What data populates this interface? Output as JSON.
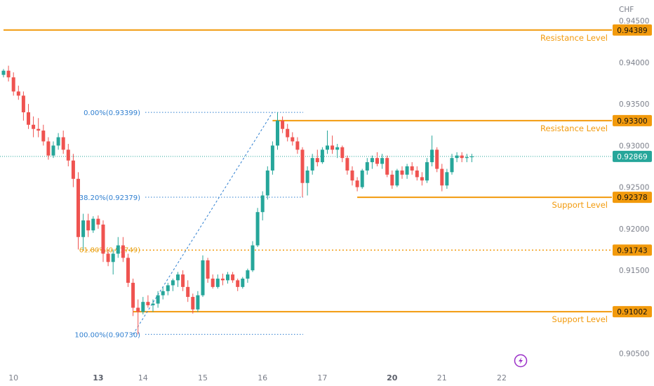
{
  "chart_data": {
    "type": "candlestick",
    "currency_label": "CHF",
    "y_ticks": [
      "0.94500",
      "0.94000",
      "0.93500",
      "0.93000",
      "0.92500",
      "0.92000",
      "0.91500",
      "0.90500"
    ],
    "y_tick_values": [
      0.945,
      0.94,
      0.935,
      0.93,
      0.925,
      0.92,
      0.915,
      0.905
    ],
    "ylim": [
      0.9032,
      0.9475
    ],
    "x_ticks": [
      {
        "label": "10",
        "index": 2,
        "bold": false
      },
      {
        "label": "13",
        "index": 19,
        "bold": true
      },
      {
        "label": "14",
        "index": 28,
        "bold": false
      },
      {
        "label": "15",
        "index": 40,
        "bold": false
      },
      {
        "label": "16",
        "index": 52,
        "bold": false
      },
      {
        "label": "17",
        "index": 64,
        "bold": false
      },
      {
        "label": "20",
        "index": 78,
        "bold": true
      },
      {
        "label": "21",
        "index": 88,
        "bold": false
      },
      {
        "label": "22",
        "index": 100,
        "bold": false
      }
    ],
    "levels": [
      {
        "name": "Resistance Level",
        "value": 0.94389,
        "value_label": "0.94389",
        "start_index": 0
      },
      {
        "name": "Resistance Level",
        "value": 0.933,
        "value_label": "0.93300",
        "start_index": 54
      },
      {
        "name": "Support Level",
        "value": 0.92378,
        "value_label": "0.92378",
        "start_index": 71
      },
      {
        "name": "Support Level",
        "value": 0.91002,
        "value_label": "0.91002",
        "start_index": 26
      }
    ],
    "fib_levels": [
      {
        "label": "0.00%(0.93399)",
        "value": 0.93399
      },
      {
        "label": "38.20%(0.92379)",
        "value": 0.92379
      },
      {
        "label": "61.80%(0.91749)",
        "value": 0.91749
      },
      {
        "label": "100.00%(0.90730)",
        "value": 0.9073
      }
    ],
    "fib_extended_level": {
      "value": 0.91743,
      "value_label": "0.91743"
    },
    "fib_anchor_low": {
      "index": 26,
      "value": 0.9073
    },
    "fib_anchor_high": {
      "index": 54,
      "value": 0.93399
    },
    "last_price": {
      "value": 0.92869,
      "value_label": "0.92869"
    },
    "candles": [
      [
        0.9385,
        0.9392,
        0.9382,
        0.939
      ],
      [
        0.939,
        0.9396,
        0.9377,
        0.9382
      ],
      [
        0.9382,
        0.9388,
        0.936,
        0.9365
      ],
      [
        0.9365,
        0.9372,
        0.9355,
        0.936
      ],
      [
        0.936,
        0.9365,
        0.933,
        0.934
      ],
      [
        0.934,
        0.935,
        0.932,
        0.9325
      ],
      [
        0.9325,
        0.9335,
        0.931,
        0.932
      ],
      [
        0.932,
        0.9333,
        0.931,
        0.9318
      ],
      [
        0.9318,
        0.9325,
        0.93,
        0.9305
      ],
      [
        0.9305,
        0.931,
        0.9283,
        0.9288
      ],
      [
        0.9288,
        0.9305,
        0.9285,
        0.93
      ],
      [
        0.93,
        0.9315,
        0.9295,
        0.931
      ],
      [
        0.931,
        0.9318,
        0.929,
        0.9295
      ],
      [
        0.9295,
        0.9302,
        0.9275,
        0.9282
      ],
      [
        0.9282,
        0.929,
        0.925,
        0.926
      ],
      [
        0.926,
        0.9268,
        0.9175,
        0.919
      ],
      [
        0.919,
        0.9218,
        0.9175,
        0.921
      ],
      [
        0.921,
        0.9218,
        0.919,
        0.9198
      ],
      [
        0.9198,
        0.9215,
        0.9195,
        0.9212
      ],
      [
        0.9212,
        0.9216,
        0.92,
        0.9205
      ],
      [
        0.9205,
        0.921,
        0.916,
        0.917
      ],
      [
        0.917,
        0.9175,
        0.9155,
        0.916
      ],
      [
        0.916,
        0.9175,
        0.9145,
        0.917
      ],
      [
        0.917,
        0.919,
        0.9165,
        0.918
      ],
      [
        0.918,
        0.919,
        0.916,
        0.9165
      ],
      [
        0.9165,
        0.917,
        0.913,
        0.9135
      ],
      [
        0.9135,
        0.914,
        0.9095,
        0.9105
      ],
      [
        0.9105,
        0.9115,
        0.9073,
        0.91
      ],
      [
        0.91,
        0.9118,
        0.9097,
        0.9112
      ],
      [
        0.9112,
        0.912,
        0.9105,
        0.9108
      ],
      [
        0.9108,
        0.9115,
        0.91,
        0.911
      ],
      [
        0.911,
        0.9125,
        0.9105,
        0.912
      ],
      [
        0.912,
        0.913,
        0.9115,
        0.9125
      ],
      [
        0.9125,
        0.9135,
        0.912,
        0.9132
      ],
      [
        0.9132,
        0.914,
        0.9125,
        0.9138
      ],
      [
        0.9138,
        0.9148,
        0.913,
        0.9145
      ],
      [
        0.9145,
        0.915,
        0.9125,
        0.913
      ],
      [
        0.913,
        0.9138,
        0.9112,
        0.9118
      ],
      [
        0.9118,
        0.9122,
        0.9098,
        0.9103
      ],
      [
        0.9103,
        0.9125,
        0.91,
        0.912
      ],
      [
        0.912,
        0.9168,
        0.9118,
        0.9162
      ],
      [
        0.9162,
        0.9165,
        0.9135,
        0.914
      ],
      [
        0.914,
        0.9145,
        0.9128,
        0.913
      ],
      [
        0.913,
        0.9145,
        0.9128,
        0.914
      ],
      [
        0.914,
        0.9146,
        0.9132,
        0.9138
      ],
      [
        0.9138,
        0.9148,
        0.9134,
        0.9145
      ],
      [
        0.9145,
        0.9148,
        0.9135,
        0.9138
      ],
      [
        0.9138,
        0.914,
        0.9125,
        0.913
      ],
      [
        0.913,
        0.9142,
        0.9128,
        0.914
      ],
      [
        0.914,
        0.9152,
        0.9135,
        0.915
      ],
      [
        0.915,
        0.9185,
        0.9148,
        0.918
      ],
      [
        0.918,
        0.9225,
        0.9178,
        0.922
      ],
      [
        0.922,
        0.9245,
        0.921,
        0.924
      ],
      [
        0.924,
        0.9275,
        0.9235,
        0.927
      ],
      [
        0.927,
        0.9305,
        0.9265,
        0.93
      ],
      [
        0.93,
        0.934,
        0.9295,
        0.933
      ],
      [
        0.933,
        0.9335,
        0.9315,
        0.932
      ],
      [
        0.932,
        0.9326,
        0.9305,
        0.931
      ],
      [
        0.931,
        0.9316,
        0.93,
        0.9305
      ],
      [
        0.9305,
        0.931,
        0.929,
        0.9295
      ],
      [
        0.9295,
        0.9298,
        0.9238,
        0.9255
      ],
      [
        0.9255,
        0.9275,
        0.924,
        0.927
      ],
      [
        0.927,
        0.929,
        0.9265,
        0.9285
      ],
      [
        0.9285,
        0.9295,
        0.9275,
        0.928
      ],
      [
        0.928,
        0.9298,
        0.9278,
        0.9295
      ],
      [
        0.9295,
        0.9318,
        0.929,
        0.93
      ],
      [
        0.93,
        0.9312,
        0.929,
        0.9295
      ],
      [
        0.9295,
        0.9302,
        0.9285,
        0.9298
      ],
      [
        0.9298,
        0.93,
        0.928,
        0.9285
      ],
      [
        0.9285,
        0.9288,
        0.9265,
        0.927
      ],
      [
        0.927,
        0.9275,
        0.9252,
        0.9258
      ],
      [
        0.9258,
        0.9262,
        0.9245,
        0.925
      ],
      [
        0.925,
        0.9272,
        0.9248,
        0.927
      ],
      [
        0.927,
        0.9285,
        0.9265,
        0.928
      ],
      [
        0.928,
        0.9288,
        0.9272,
        0.9285
      ],
      [
        0.9285,
        0.9292,
        0.9275,
        0.9278
      ],
      [
        0.9278,
        0.929,
        0.9272,
        0.9285
      ],
      [
        0.9285,
        0.9288,
        0.9262,
        0.9265
      ],
      [
        0.9265,
        0.927,
        0.9248,
        0.9252
      ],
      [
        0.9252,
        0.9272,
        0.925,
        0.927
      ],
      [
        0.927,
        0.9275,
        0.926,
        0.9265
      ],
      [
        0.9265,
        0.9278,
        0.926,
        0.9275
      ],
      [
        0.9275,
        0.928,
        0.9265,
        0.927
      ],
      [
        0.927,
        0.9275,
        0.9258,
        0.9262
      ],
      [
        0.9262,
        0.9268,
        0.9252,
        0.9258
      ],
      [
        0.9258,
        0.9285,
        0.9255,
        0.928
      ],
      [
        0.928,
        0.9312,
        0.9275,
        0.9295
      ],
      [
        0.9295,
        0.9298,
        0.9268,
        0.9272
      ],
      [
        0.9272,
        0.9278,
        0.9245,
        0.9252
      ],
      [
        0.9252,
        0.9272,
        0.9248,
        0.9268
      ],
      [
        0.9268,
        0.929,
        0.9265,
        0.9285
      ],
      [
        0.9285,
        0.9292,
        0.928,
        0.9288
      ],
      [
        0.9288,
        0.9292,
        0.928,
        0.9285
      ],
      [
        0.9285,
        0.929,
        0.928,
        0.9286
      ],
      [
        0.9286,
        0.929,
        0.928,
        0.9287
      ]
    ]
  }
}
